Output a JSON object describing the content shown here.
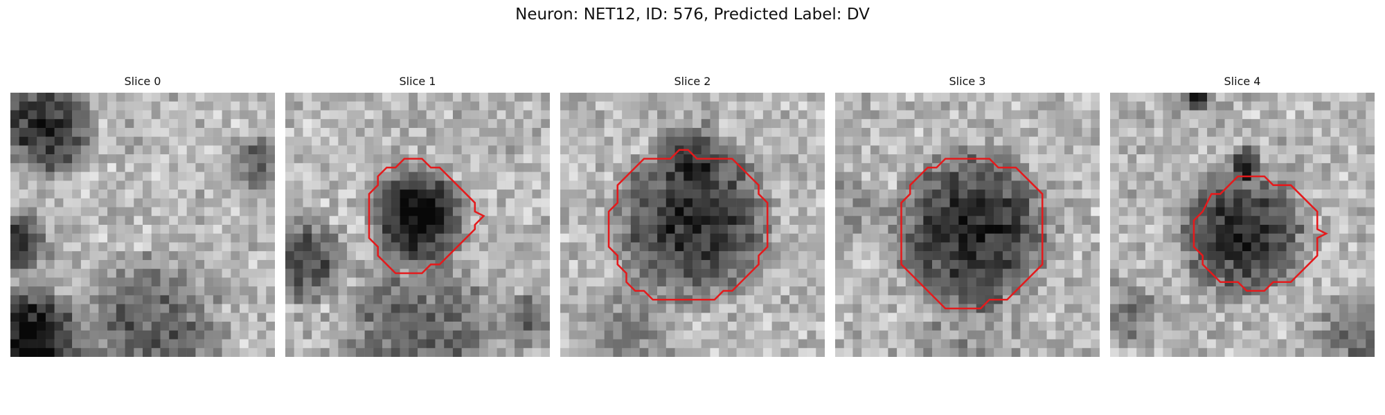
{
  "figure": {
    "title": "Neuron: NET12, ID: 576, Predicted Label: DV"
  },
  "colors": {
    "contour": "#e41a1c"
  },
  "panels": [
    {
      "title": "Slice 0",
      "has_contour": false,
      "seed": 11,
      "blobs": "s0"
    },
    {
      "title": "Slice 1",
      "has_contour": true,
      "seed": 23,
      "blobs": "s1"
    },
    {
      "title": "Slice 2",
      "has_contour": true,
      "seed": 37,
      "blobs": "s2"
    },
    {
      "title": "Slice 3",
      "has_contour": true,
      "seed": 41,
      "blobs": "s3"
    },
    {
      "title": "Slice 4",
      "has_contour": true,
      "seed": 59,
      "blobs": "s4"
    }
  ]
}
